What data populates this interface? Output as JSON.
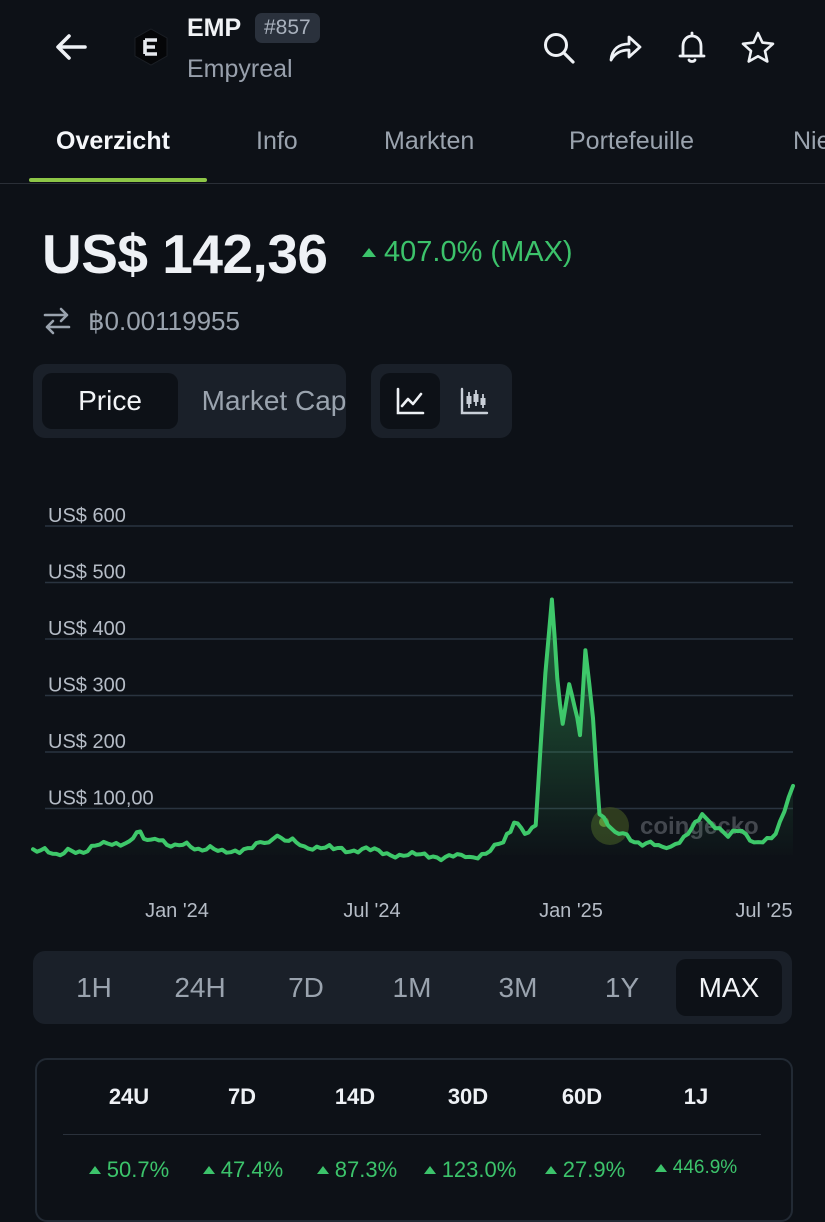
{
  "header": {
    "symbol": "EMP",
    "rank": "#857",
    "name": "Empyreal",
    "icons": [
      "back-arrow-icon",
      "search-icon",
      "share-icon",
      "bell-icon",
      "star-icon"
    ]
  },
  "tabs": [
    {
      "label": "Overzicht",
      "active": true
    },
    {
      "label": "Info"
    },
    {
      "label": "Markten"
    },
    {
      "label": "Portefeuille"
    },
    {
      "label": "Nie"
    }
  ],
  "price": {
    "value": "US$ 142,36",
    "change": "407.0% (MAX)",
    "btc": "฿0.00119955"
  },
  "toggle": {
    "price": "Price",
    "market_cap": "Market Cap"
  },
  "chart_data": {
    "type": "area",
    "y_tick_labels": [
      "US$ 600",
      "US$ 500",
      "US$ 400",
      "US$ 300",
      "US$ 200",
      "US$ 100,00"
    ],
    "y_ticks": [
      600,
      500,
      400,
      300,
      200,
      100
    ],
    "ylim": [
      0,
      620
    ],
    "x_tick_labels": [
      "Jan '24",
      "Jul '24",
      "Jan '25",
      "Jul '25"
    ],
    "x_range": [
      "2023-08-28",
      "2025-07-31"
    ],
    "line_color": "#3ec86a",
    "points": [
      [
        "2023-08-28",
        28
      ],
      [
        "2023-09-15",
        20
      ],
      [
        "2023-10-10",
        24
      ],
      [
        "2023-11-05",
        38
      ],
      [
        "2023-11-25",
        42
      ],
      [
        "2023-12-02",
        58
      ],
      [
        "2023-12-15",
        45
      ],
      [
        "2024-01-10",
        35
      ],
      [
        "2024-02-15",
        25
      ],
      [
        "2024-03-10",
        28
      ],
      [
        "2024-04-02",
        40
      ],
      [
        "2024-04-10",
        52
      ],
      [
        "2024-05-01",
        35
      ],
      [
        "2024-06-01",
        28
      ],
      [
        "2024-07-05",
        26
      ],
      [
        "2024-08-01",
        18
      ],
      [
        "2024-09-01",
        15
      ],
      [
        "2024-10-01",
        14
      ],
      [
        "2024-10-20",
        20
      ],
      [
        "2024-11-05",
        40
      ],
      [
        "2024-11-15",
        75
      ],
      [
        "2024-11-25",
        55
      ],
      [
        "2024-12-05",
        70
      ],
      [
        "2024-12-14",
        340
      ],
      [
        "2024-12-20",
        470
      ],
      [
        "2024-12-25",
        330
      ],
      [
        "2024-12-30",
        250
      ],
      [
        "2025-01-05",
        320
      ],
      [
        "2025-01-10",
        280
      ],
      [
        "2025-01-15",
        230
      ],
      [
        "2025-01-20",
        380
      ],
      [
        "2025-01-27",
        260
      ],
      [
        "2025-02-02",
        90
      ],
      [
        "2025-02-10",
        70
      ],
      [
        "2025-02-20",
        55
      ],
      [
        "2025-03-10",
        40
      ],
      [
        "2025-04-05",
        30
      ],
      [
        "2025-04-25",
        55
      ],
      [
        "2025-05-08",
        90
      ],
      [
        "2025-05-20",
        65
      ],
      [
        "2025-06-01",
        50
      ],
      [
        "2025-06-10",
        60
      ],
      [
        "2025-06-25",
        40
      ],
      [
        "2025-07-15",
        55
      ],
      [
        "2025-07-31",
        140
      ]
    ],
    "watermark": "coingecko"
  },
  "ranges": [
    {
      "label": "1H"
    },
    {
      "label": "24H"
    },
    {
      "label": "7D"
    },
    {
      "label": "1M"
    },
    {
      "label": "3M"
    },
    {
      "label": "1Y"
    },
    {
      "label": "MAX",
      "active": true
    }
  ],
  "performance": {
    "headers": [
      "24U",
      "7D",
      "14D",
      "30D",
      "60D",
      "1J"
    ],
    "values": [
      "50.7%",
      "47.4%",
      "87.3%",
      "123.0%",
      "27.9%",
      "446.9%"
    ]
  },
  "colors": {
    "positive": "#3cc36b",
    "tab_indicator": "#8dc647",
    "background": "#0d1117"
  }
}
